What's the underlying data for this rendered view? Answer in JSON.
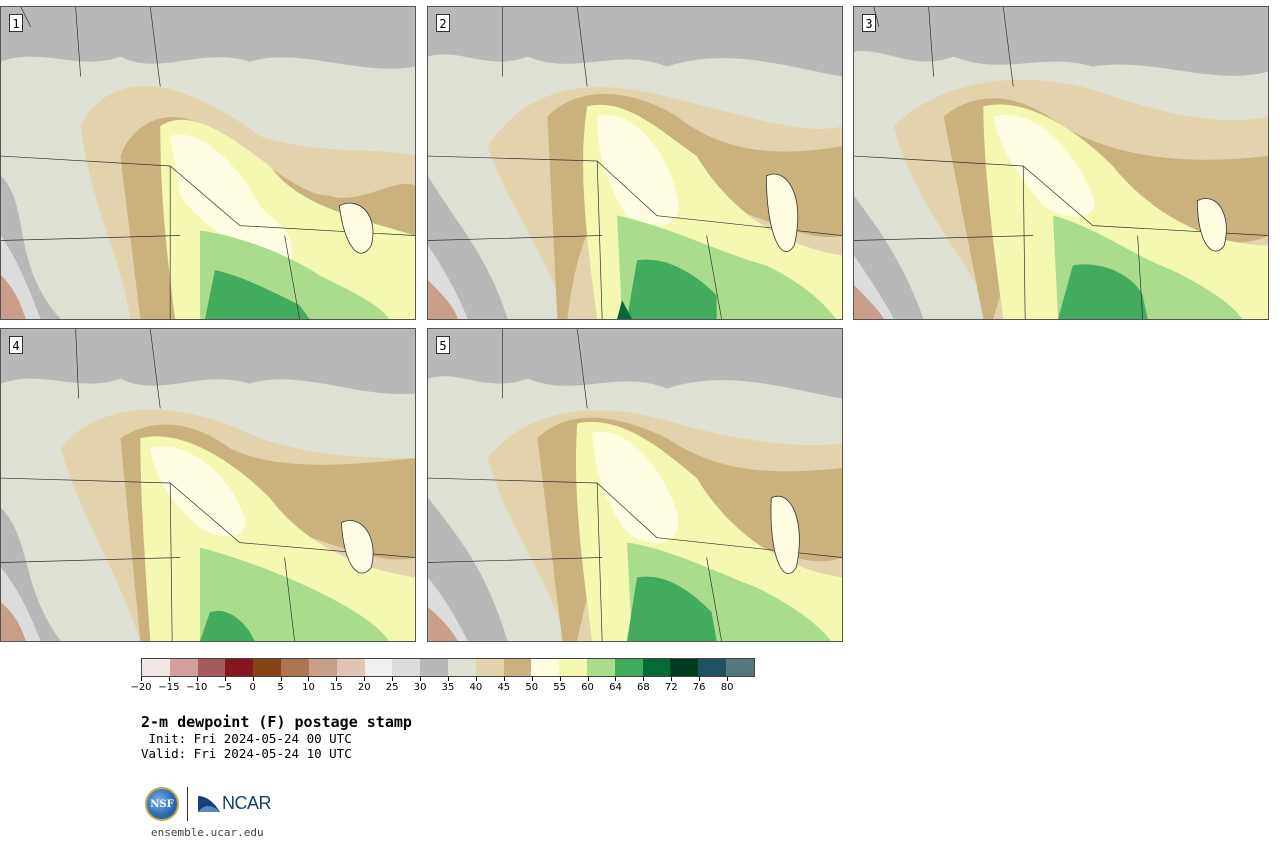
{
  "panels": [
    {
      "label": "1"
    },
    {
      "label": "2"
    },
    {
      "label": "3"
    },
    {
      "label": "4"
    },
    {
      "label": "5"
    }
  ],
  "colorbar": {
    "colors": [
      "#f3e7e6",
      "#d2a0a1",
      "#a65b5f",
      "#85161f",
      "#864414",
      "#ad7552",
      "#c8a08a",
      "#e0c4b5",
      "#f0f0f0",
      "#dcdcdc",
      "#b8b8b8",
      "#dfe0d4",
      "#e2d3ad",
      "#c9b27b",
      "#fefde2",
      "#f4f8b0",
      "#a9dd8c",
      "#42ab5c",
      "#056a38",
      "#02391f",
      "#1d5360",
      "#52787b"
    ],
    "tick_labels": [
      "−20",
      "−15",
      "−10",
      "−5",
      "0",
      "5",
      "10",
      "15",
      "20",
      "25",
      "30",
      "35",
      "40",
      "45",
      "50",
      "55",
      "60",
      "64",
      "68",
      "72",
      "76",
      "80"
    ]
  },
  "title": "2-m dewpoint (F) postage stamp",
  "init_line": " Init: Fri 2024-05-24 00 UTC",
  "valid_line": "Valid: Fri 2024-05-24 10 UTC",
  "logos": {
    "nsf_text": "NSF",
    "ncar_text": "NCAR",
    "site": "ensemble.ucar.edu"
  }
}
